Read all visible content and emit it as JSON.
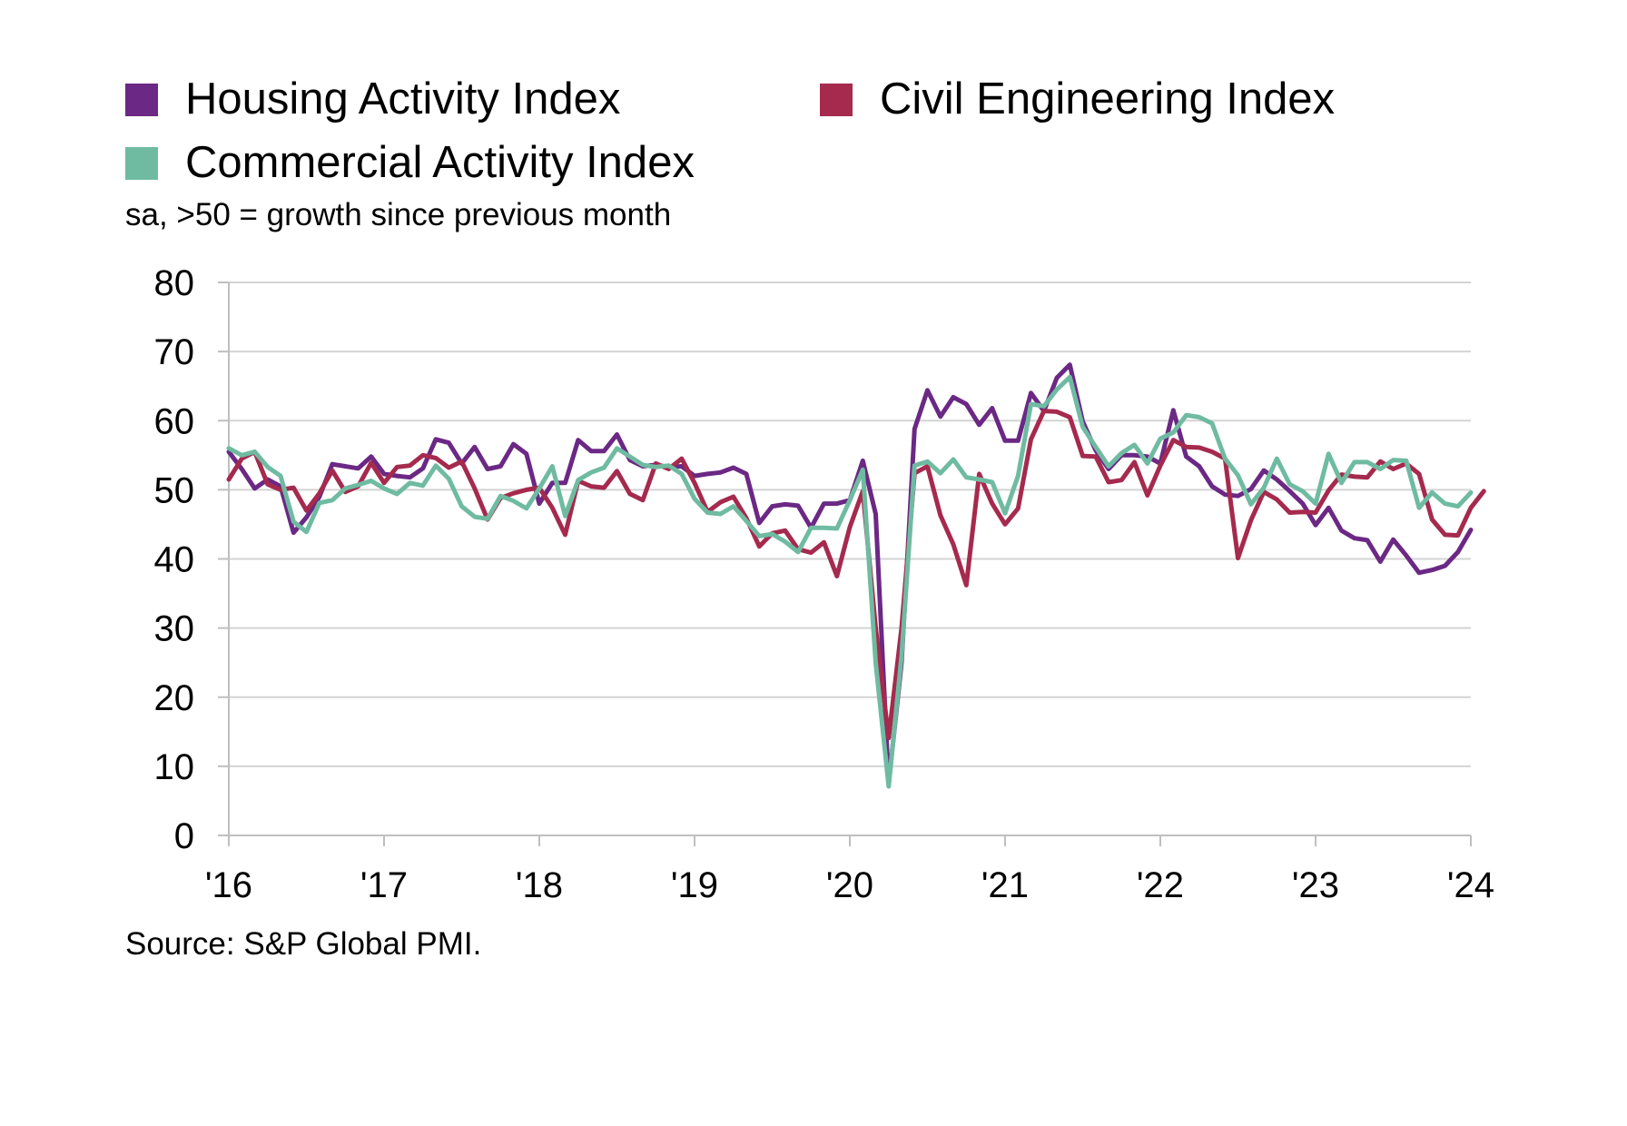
{
  "legend": {
    "items": [
      {
        "label": "Housing Activity Index",
        "color": "#6b2884"
      },
      {
        "label": "Civil Engineering Index",
        "color": "#a52a4e"
      },
      {
        "label": "Commercial Activity Index",
        "color": "#6fbba2"
      }
    ]
  },
  "subtitle": "sa, >50 = growth since previous month",
  "source": "Source: S&P Global PMI.",
  "chart_data": {
    "type": "line",
    "x_start": "2016-01",
    "x_frequency": "monthly",
    "xticks": [
      "'16",
      "'17",
      "'18",
      "'19",
      "'20",
      "'21",
      "'22",
      "'23",
      "'24"
    ],
    "yticks": [
      "0",
      "10",
      "20",
      "30",
      "40",
      "50",
      "60",
      "70",
      "80"
    ],
    "ylim": [
      0,
      80
    ],
    "grid": true,
    "legend_position": "top",
    "series": [
      {
        "name": "Housing Activity Index",
        "color": "#6b2884",
        "values": [
          55.5,
          53,
          50.2,
          51.5,
          50.5,
          43.8,
          46,
          49,
          53.7,
          53.4,
          53.1,
          54.8,
          52.3,
          52,
          51.8,
          53.1,
          57.3,
          56.8,
          53.8,
          56.2,
          53,
          53.4,
          56.6,
          55.2,
          48,
          51,
          51,
          57.2,
          55.6,
          55.6,
          58,
          54.3,
          53.4,
          53.6,
          53.3,
          53.4,
          52,
          52.3,
          52.5,
          53.2,
          52.3,
          45.2,
          47.6,
          47.9,
          47.7,
          44.5,
          48,
          48,
          48.5,
          54.2,
          46.5,
          7.5,
          25,
          58.8,
          64.4,
          60.6,
          63.4,
          62.4,
          59.4,
          61.8,
          57.1,
          57.1,
          64,
          61.4,
          66.2,
          68.1,
          59.9,
          55.7,
          53,
          55,
          55,
          54.8,
          53.8,
          61.5,
          54.8,
          53.4,
          50.5,
          49.3,
          49.1,
          50.1,
          52.8,
          51.5,
          49.8,
          48,
          44.9,
          47.4,
          44.1,
          43,
          42.7,
          39.6,
          42.8,
          40.5,
          38,
          38.4,
          39,
          41,
          44.2
        ]
      },
      {
        "name": "Civil Engineering Index",
        "color": "#a52a4e",
        "values": [
          51.5,
          54.5,
          55.5,
          50.8,
          50,
          50.3,
          47,
          49.5,
          52.8,
          49.7,
          50.5,
          53.9,
          51,
          53.3,
          53.5,
          55,
          54.6,
          53.2,
          54.1,
          50.2,
          45.7,
          48.8,
          49.5,
          50,
          50.3,
          47.4,
          43.5,
          51.3,
          50.5,
          50.3,
          52.7,
          49.4,
          48.5,
          53.8,
          53,
          54.5,
          51,
          46.8,
          48.2,
          49,
          45.9,
          41.8,
          43.7,
          44.1,
          41.4,
          40.9,
          42.4,
          37.5,
          44.6,
          49.8,
          30,
          14.1,
          30,
          52.4,
          53.4,
          46.3,
          42.1,
          36.2,
          52.3,
          48,
          45,
          47.3,
          57.3,
          61.4,
          61.3,
          60.5,
          54.9,
          54.8,
          51.1,
          51.4,
          54,
          49.2,
          53.5,
          57.2,
          56.2,
          56.1,
          55.5,
          54.5,
          40.1,
          45.6,
          49.7,
          48.6,
          46.7,
          46.8,
          46.7,
          49.9,
          52.2,
          51.9,
          51.8,
          54.1,
          53,
          53.8,
          52.3,
          45.7,
          43.5,
          43.4,
          47.4,
          49.8
        ]
      },
      {
        "name": "Commercial Activity Index",
        "color": "#6fbba2",
        "values": [
          56,
          55,
          55.5,
          53.3,
          52,
          45.4,
          43.9,
          48.1,
          48.5,
          50.2,
          50.7,
          51.3,
          50.2,
          49.4,
          51,
          50.6,
          53.5,
          51.6,
          47.6,
          46.1,
          45.8,
          49.1,
          48.4,
          47.3,
          50.2,
          53.4,
          46.2,
          51.4,
          52.5,
          53.2,
          56,
          54.8,
          53.6,
          53.3,
          53.5,
          52.3,
          48.7,
          46.7,
          46.5,
          47.6,
          45.5,
          43.3,
          43.6,
          42.5,
          41,
          44.5,
          44.5,
          44.4,
          48.5,
          52.9,
          25,
          7.1,
          26,
          53.5,
          54.1,
          52.4,
          54.4,
          51.8,
          51.5,
          51.1,
          46.6,
          52,
          62.4,
          62.1,
          64.5,
          66.3,
          59.1,
          56.2,
          53.4,
          55.3,
          56.5,
          53.8,
          57.4,
          58.3,
          60.8,
          60.5,
          59.6,
          54.5,
          52.1,
          47.9,
          50.3,
          54.5,
          50.8,
          49.8,
          48,
          55.2,
          51,
          54,
          54,
          53,
          54.3,
          54.2,
          47.4,
          49.6,
          48,
          47.6,
          49.6
        ]
      }
    ]
  }
}
